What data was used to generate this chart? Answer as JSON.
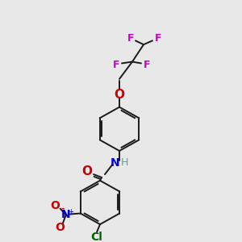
{
  "bg_color": "#e8e8e8",
  "bond_color": "#1a1a1a",
  "atom_colors": {
    "F": "#cc00cc",
    "O": "#cc0000",
    "N_amide": "#0000cc",
    "H": "#5f9ea0",
    "N_nitro": "#0000cc",
    "O_nitro": "#cc0000",
    "Cl": "#006600"
  },
  "font_size": 9,
  "bond_width": 1.4,
  "double_sep": 2.5
}
